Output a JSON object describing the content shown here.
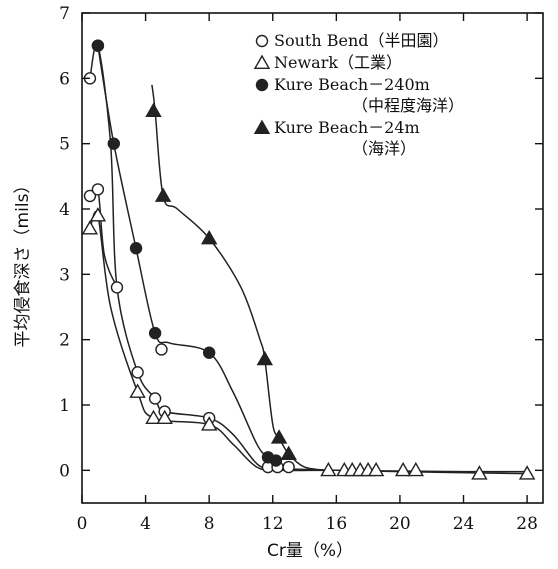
{
  "chart_data": {
    "type": "line",
    "xlabel": "Cr量（%）",
    "ylabel": "平均侵食深さ（mils）",
    "xlim": [
      0,
      29
    ],
    "ylim": [
      -0.5,
      7
    ],
    "xticks": [
      0,
      4,
      8,
      12,
      16,
      20,
      24,
      28
    ],
    "yticks": [
      0,
      1,
      2,
      3,
      4,
      5,
      6,
      7
    ],
    "grid": false,
    "legend_position": "top-right",
    "series": [
      {
        "name": "South Bend（半田園）",
        "marker": "circle-open",
        "points": [
          [
            0.5,
            6.0
          ],
          [
            0.5,
            4.2
          ],
          [
            1.0,
            6.5
          ],
          [
            1.0,
            4.3
          ],
          [
            2.2,
            2.8
          ],
          [
            3.5,
            1.5
          ],
          [
            4.6,
            1.1
          ],
          [
            5.0,
            1.85
          ],
          [
            5.2,
            0.9
          ],
          [
            8.0,
            0.8
          ],
          [
            11.7,
            0.05
          ],
          [
            12.3,
            0.05
          ],
          [
            13.0,
            0.05
          ]
        ],
        "curves": [
          [
            [
              0.5,
              6.0
            ],
            [
              1.0,
              6.5
            ],
            [
              1.8,
              5.0
            ],
            [
              2.2,
              2.8
            ],
            [
              3.5,
              1.5
            ],
            [
              4.6,
              1.1
            ],
            [
              5.2,
              0.9
            ],
            [
              8.0,
              0.8
            ],
            [
              9.5,
              0.55
            ],
            [
              11.0,
              0.1
            ],
            [
              12.0,
              0.02
            ],
            [
              13.0,
              0.02
            ],
            [
              16.0,
              0.0
            ],
            [
              20.0,
              -0.01
            ],
            [
              24.0,
              -0.02
            ],
            [
              28.0,
              -0.02
            ]
          ],
          [
            [
              0.5,
              4.2
            ],
            [
              1.0,
              4.3
            ],
            [
              1.4,
              3.3
            ],
            [
              2.2,
              2.8
            ]
          ]
        ]
      },
      {
        "name": "Newark（工業）",
        "marker": "triangle-open",
        "points": [
          [
            0.5,
            3.7
          ],
          [
            1.0,
            3.9
          ],
          [
            3.5,
            1.2
          ],
          [
            4.5,
            0.8
          ],
          [
            5.2,
            0.8
          ],
          [
            8.0,
            0.7
          ],
          [
            15.5,
            0.0
          ],
          [
            16.5,
            0.0
          ],
          [
            17.0,
            0.0
          ],
          [
            17.5,
            0.0
          ],
          [
            18.0,
            0.0
          ],
          [
            18.5,
            0.0
          ],
          [
            20.2,
            0.0
          ],
          [
            21.0,
            0.0
          ],
          [
            25.0,
            -0.05
          ],
          [
            28.0,
            -0.05
          ]
        ],
        "curves": [
          [
            [
              0.5,
              3.7
            ],
            [
              1.0,
              3.9
            ],
            [
              1.8,
              2.5
            ],
            [
              3.5,
              1.2
            ],
            [
              4.5,
              0.8
            ],
            [
              8.0,
              0.7
            ],
            [
              9.5,
              0.4
            ],
            [
              11.0,
              0.05
            ],
            [
              12.5,
              0.0
            ],
            [
              16.0,
              0.0
            ],
            [
              20.0,
              -0.02
            ],
            [
              28.0,
              -0.05
            ]
          ]
        ]
      },
      {
        "name": "Kure Beach－240m（中程度海洋）",
        "marker": "circle-filled",
        "points": [
          [
            1.0,
            6.5
          ],
          [
            2.0,
            5.0
          ],
          [
            3.4,
            3.4
          ],
          [
            4.6,
            2.1
          ],
          [
            8.0,
            1.8
          ],
          [
            11.7,
            0.2
          ],
          [
            12.2,
            0.15
          ]
        ],
        "curves": [
          [
            [
              1.0,
              6.5
            ],
            [
              2.0,
              5.0
            ],
            [
              3.4,
              3.4
            ],
            [
              4.6,
              2.1
            ],
            [
              5.5,
              1.95
            ],
            [
              8.0,
              1.8
            ],
            [
              9.5,
              1.2
            ],
            [
              11.0,
              0.4
            ],
            [
              11.7,
              0.2
            ],
            [
              12.5,
              0.05
            ],
            [
              14.0,
              0.0
            ]
          ]
        ]
      },
      {
        "name": "Kure Beach－24m（海洋）",
        "marker": "triangle-filled",
        "points": [
          [
            4.5,
            5.5
          ],
          [
            5.1,
            4.2
          ],
          [
            8.0,
            3.55
          ],
          [
            11.5,
            1.7
          ],
          [
            12.4,
            0.5
          ],
          [
            13.0,
            0.25
          ]
        ],
        "curves": [
          [
            [
              4.4,
              5.9
            ],
            [
              4.6,
              5.5
            ],
            [
              5.1,
              4.2
            ],
            [
              6.0,
              4.0
            ],
            [
              8.0,
              3.55
            ],
            [
              10.0,
              2.8
            ],
            [
              11.2,
              2.0
            ],
            [
              11.5,
              1.7
            ],
            [
              12.0,
              0.7
            ],
            [
              12.4,
              0.5
            ],
            [
              13.0,
              0.25
            ],
            [
              14.0,
              0.05
            ],
            [
              15.5,
              0.0
            ]
          ]
        ]
      }
    ],
    "legend": [
      {
        "marker": "circle-open",
        "lines": [
          "South Bend（半田園）"
        ]
      },
      {
        "marker": "triangle-open",
        "lines": [
          "Newark（工業）"
        ]
      },
      {
        "marker": "circle-filled",
        "lines": [
          "Kure Beach－240m",
          "（中程度海洋）"
        ]
      },
      {
        "marker": "triangle-filled",
        "lines": [
          "Kure Beach－24m",
          "（海洋）"
        ]
      }
    ]
  }
}
